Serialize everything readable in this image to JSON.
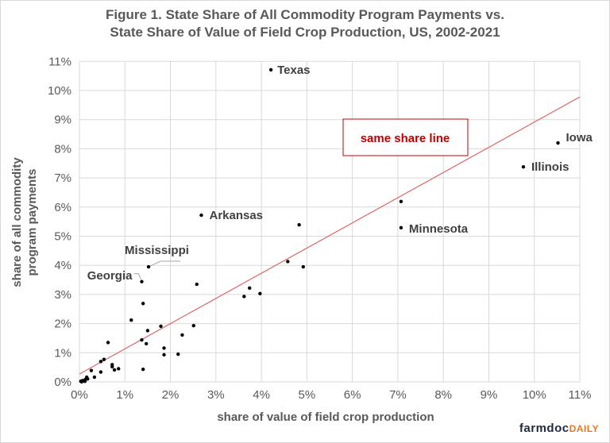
{
  "chart_data": {
    "type": "scatter",
    "title_line1": "Figure 1. State Share of All Commodity Program Payments vs.",
    "title_line2": "State Share of Value of Field Crop Production, US, 2002-2021",
    "xlabel": "share of value of field crop production",
    "ylabel_line1": "share of all commodity",
    "ylabel_line2": "program payments",
    "xlim": [
      0,
      11
    ],
    "ylim": [
      0,
      11
    ],
    "x_ticks": [
      "0%",
      "1%",
      "2%",
      "3%",
      "4%",
      "5%",
      "6%",
      "7%",
      "8%",
      "9%",
      "10%",
      "11%"
    ],
    "y_ticks": [
      "0%",
      "1%",
      "2%",
      "3%",
      "4%",
      "5%",
      "6%",
      "7%",
      "8%",
      "9%",
      "10%",
      "11%"
    ],
    "grid": true,
    "point_color": "#000000",
    "line_color": "#e06666",
    "reference_line": {
      "label": "same share line",
      "label_color": "#c00000",
      "x": [
        0,
        11
      ],
      "y": [
        0.27,
        9.78
      ]
    },
    "points": [
      {
        "x": 4.21,
        "y": 10.71,
        "label": "Texas"
      },
      {
        "x": 10.52,
        "y": 8.2,
        "label": "Iowa"
      },
      {
        "x": 9.76,
        "y": 7.38,
        "label": "Illinois"
      },
      {
        "x": 7.07,
        "y": 5.29,
        "label": "Minnesota"
      },
      {
        "x": 2.68,
        "y": 5.72,
        "label": "Arkansas"
      },
      {
        "x": 1.52,
        "y": 3.95,
        "label": "Mississippi"
      },
      {
        "x": 1.37,
        "y": 3.44,
        "label": "Georgia"
      },
      {
        "x": 7.07,
        "y": 6.19
      },
      {
        "x": 4.83,
        "y": 5.39
      },
      {
        "x": 4.58,
        "y": 4.13
      },
      {
        "x": 4.92,
        "y": 3.95
      },
      {
        "x": 3.74,
        "y": 3.22
      },
      {
        "x": 3.62,
        "y": 2.93
      },
      {
        "x": 3.97,
        "y": 3.03
      },
      {
        "x": 2.58,
        "y": 3.35
      },
      {
        "x": 1.4,
        "y": 2.69
      },
      {
        "x": 1.14,
        "y": 2.12
      },
      {
        "x": 1.79,
        "y": 1.91
      },
      {
        "x": 2.51,
        "y": 1.93
      },
      {
        "x": 1.5,
        "y": 1.76
      },
      {
        "x": 2.26,
        "y": 1.61
      },
      {
        "x": 0.63,
        "y": 1.35
      },
      {
        "x": 1.37,
        "y": 1.44
      },
      {
        "x": 1.47,
        "y": 1.31
      },
      {
        "x": 1.86,
        "y": 1.16
      },
      {
        "x": 1.86,
        "y": 0.93
      },
      {
        "x": 2.17,
        "y": 0.95
      },
      {
        "x": 0.54,
        "y": 0.77
      },
      {
        "x": 0.47,
        "y": 0.7
      },
      {
        "x": 0.72,
        "y": 0.59
      },
      {
        "x": 0.72,
        "y": 0.52
      },
      {
        "x": 0.86,
        "y": 0.45
      },
      {
        "x": 0.77,
        "y": 0.41
      },
      {
        "x": 1.4,
        "y": 0.43
      },
      {
        "x": 0.26,
        "y": 0.39
      },
      {
        "x": 0.47,
        "y": 0.34
      },
      {
        "x": 0.33,
        "y": 0.16
      },
      {
        "x": 0.16,
        "y": 0.16
      },
      {
        "x": 0.03,
        "y": 0.02
      },
      {
        "x": 0.06,
        "y": 0.04
      },
      {
        "x": 0.1,
        "y": 0.05
      },
      {
        "x": 0.13,
        "y": 0.08
      },
      {
        "x": 0.18,
        "y": 0.1
      },
      {
        "x": 0.05,
        "y": 0.0
      },
      {
        "x": 0.12,
        "y": 0.02
      }
    ]
  },
  "branding": {
    "logo_part1": "farmdoc",
    "logo_part2": "DAILY",
    "color1": "#1f2a44",
    "color2": "#e87722"
  }
}
